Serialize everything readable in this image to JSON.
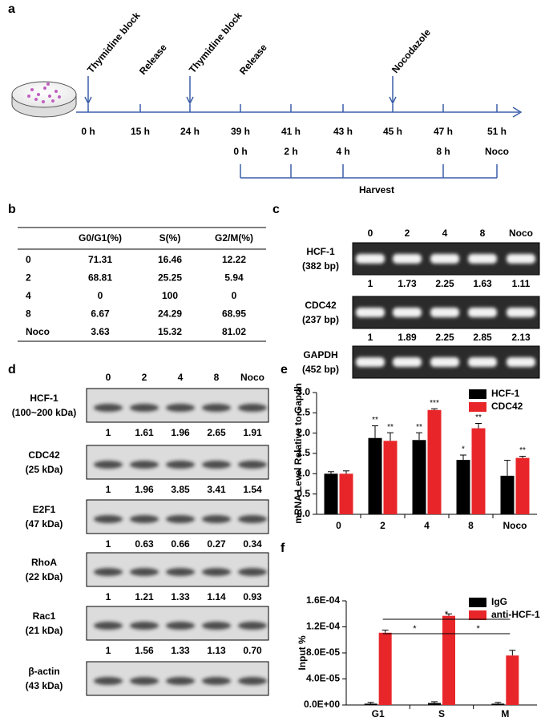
{
  "timeline": {
    "label": "a",
    "annotations": [
      "Thymidine block",
      "Release",
      "Thymidine block",
      "Release",
      "Nocodazole"
    ],
    "times": [
      "0 h",
      "15 h",
      "24 h",
      "39 h",
      "41 h",
      "43 h",
      "45 h",
      "47 h",
      "51 h"
    ],
    "harvest_times": [
      "0 h",
      "2 h",
      "4 h",
      "8 h",
      "Noco"
    ],
    "harvest_label": "Harvest"
  },
  "cell_cycle_table": {
    "label": "b",
    "columns": [
      "G0/G1(%)",
      "S(%)",
      "G2/M(%)"
    ],
    "rows": [
      [
        "0",
        "71.31",
        "16.46",
        "12.22"
      ],
      [
        "2",
        "68.81",
        "25.25",
        "5.94"
      ],
      [
        "4",
        "0",
        "100",
        "0"
      ],
      [
        "8",
        "6.67",
        "24.29",
        "68.95"
      ],
      [
        "Noco",
        "3.63",
        "15.32",
        "81.02"
      ]
    ]
  },
  "rt_pcr": {
    "label": "c",
    "lanes": [
      "0",
      "2",
      "4",
      "8",
      "Noco"
    ],
    "blots": [
      {
        "name": "HCF-1",
        "size": "(382 bp)",
        "ratios": [
          "1",
          "1.73",
          "2.25",
          "1.63",
          "1.11"
        ]
      },
      {
        "name": "CDC42",
        "size": "(237 bp)",
        "ratios": [
          "1",
          "1.89",
          "2.25",
          "2.85",
          "2.13"
        ]
      },
      {
        "name": "GAPDH",
        "size": "(452 bp)"
      }
    ]
  },
  "western": {
    "label": "d",
    "lanes": [
      "0",
      "2",
      "4",
      "8",
      "Noco"
    ],
    "blots": [
      {
        "name": "HCF-1",
        "size": "(100~200 kDa)",
        "ratios": [
          "1",
          "1.61",
          "1.96",
          "2.65",
          "1.91"
        ]
      },
      {
        "name": "CDC42",
        "size": "(25 kDa)",
        "ratios": [
          "1",
          "1.96",
          "3.85",
          "3.41",
          "1.54"
        ]
      },
      {
        "name": "E2F1",
        "size": "(47 kDa)",
        "ratios": [
          "1",
          "0.63",
          "0.66",
          "0.27",
          "0.34"
        ]
      },
      {
        "name": "RhoA",
        "size": "(22 kDa)",
        "ratios": [
          "1",
          "1.21",
          "1.33",
          "1.14",
          "0.93"
        ]
      },
      {
        "name": "Rac1",
        "size": "(21 kDa)",
        "ratios": [
          "1",
          "1.56",
          "1.33",
          "1.13",
          "0.70"
        ]
      },
      {
        "name": "β-actin",
        "size": "(43 kDa)"
      }
    ]
  },
  "chart_data": [
    {
      "type": "bar",
      "label": "e",
      "y_label": "mRNA Level Relative to Gapdh",
      "categories": [
        "0",
        "2",
        "4",
        "8",
        "Noco"
      ],
      "series": [
        {
          "name": "HCF-1",
          "color": "#000000",
          "values": [
            1.0,
            1.88,
            1.83,
            1.34,
            0.95
          ],
          "errors": [
            0.05,
            0.3,
            0.18,
            0.12,
            0.38
          ],
          "annotations": [
            null,
            "**",
            "**",
            "*",
            null
          ]
        },
        {
          "name": "CDC42",
          "color": "#e8262a",
          "values": [
            1.0,
            1.81,
            2.57,
            2.12,
            1.39
          ],
          "errors": [
            0.07,
            0.2,
            0.03,
            0.12,
            0.04
          ],
          "annotations": [
            null,
            "**",
            "***",
            "**",
            "**"
          ]
        }
      ],
      "ylim": [
        0,
        3
      ],
      "yticks": [
        {
          "value": 0,
          "label": "0.0"
        },
        {
          "value": 0.5,
          "label": "0.5"
        },
        {
          "value": 1,
          "label": "1.0"
        },
        {
          "value": 1.5,
          "label": "1.5"
        },
        {
          "value": 2,
          "label": "2.0"
        },
        {
          "value": 2.5,
          "label": "2.5"
        },
        {
          "value": 3,
          "label": "3.0"
        }
      ],
      "legend": "top-right"
    },
    {
      "type": "bar",
      "label": "f",
      "y_label": "Input %",
      "categories": [
        "G1",
        "S",
        "M"
      ],
      "series": [
        {
          "name": "IgG",
          "color": "#000000",
          "values": [
            2e-06,
            3e-06,
            2e-06
          ],
          "errors": [
            2e-06,
            2e-06,
            2e-06
          ]
        },
        {
          "name": "anti-HCF-1",
          "color": "#e8262a",
          "values": [
            0.000111,
            0.000137,
            7.6e-05
          ],
          "errors": [
            4e-06,
            3e-06,
            8e-06
          ]
        }
      ],
      "ylim": [
        0,
        0.00016
      ],
      "yticks": [
        {
          "value": 0,
          "label": "0.0E+00"
        },
        {
          "value": 4e-05,
          "label": "4.0E-05"
        },
        {
          "value": 8e-05,
          "label": "8.0E-05"
        },
        {
          "value": 0.00012,
          "label": "1.2E-04"
        },
        {
          "value": 0.00016,
          "label": "1.6E-04"
        }
      ],
      "comparisons": [
        {
          "between": [
            "G1",
            "M"
          ],
          "label": "*"
        },
        {
          "between": [
            "G1",
            "S"
          ],
          "label": "*"
        },
        {
          "between": [
            "S",
            "M"
          ],
          "label": "*"
        }
      ],
      "legend": "top-right"
    }
  ]
}
